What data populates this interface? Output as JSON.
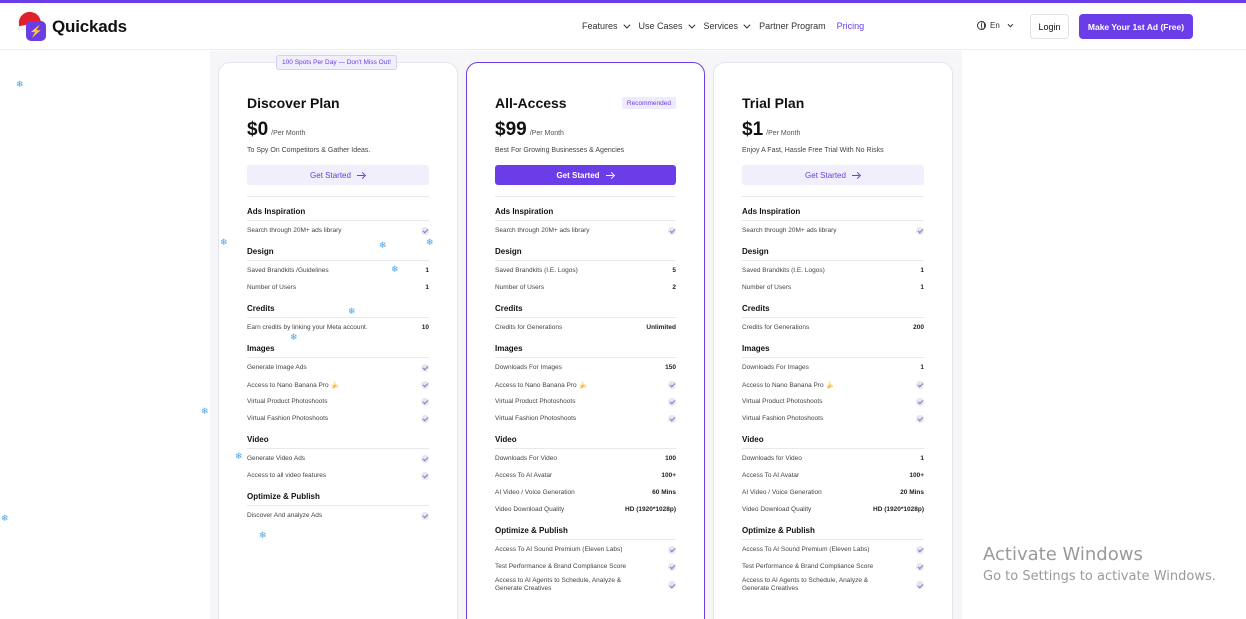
{
  "brand": {
    "name": "Quickads"
  },
  "nav": {
    "items": [
      {
        "label": "Features",
        "dropdown": true
      },
      {
        "label": "Use Cases",
        "dropdown": true
      },
      {
        "label": "Services",
        "dropdown": true
      },
      {
        "label": "Partner Program",
        "dropdown": false
      },
      {
        "label": "Pricing",
        "dropdown": false,
        "active": true
      }
    ],
    "lang": "En",
    "login": "Login",
    "cta": "Make Your 1st Ad (Free)"
  },
  "badges": {
    "spots": "100 Spots Per Day — Don't Miss Out!",
    "recommended": "Recommended"
  },
  "plans": [
    {
      "name": "Discover Plan",
      "price": "$0",
      "per": "/Per Month",
      "desc": "To Spy On Competitors & Gather Ideas.",
      "button": "Get Started",
      "style": "light",
      "sections": [
        {
          "title": "Ads Inspiration",
          "rows": [
            {
              "label": "Search through 20M+ ads library",
              "check": true
            }
          ]
        },
        {
          "title": "Design",
          "rows": [
            {
              "label": "Saved Brandkits /Guidelines",
              "value": "1"
            },
            {
              "label": "Number of Users",
              "value": "1"
            }
          ]
        },
        {
          "title": "Credits",
          "rows": [
            {
              "label": "Earn credits by linking your Meta account.",
              "value": "10"
            }
          ]
        },
        {
          "title": "Images",
          "rows": [
            {
              "label": "Generate Image Ads",
              "check": true
            },
            {
              "label": "Access to Nano Banana Pro 🍌",
              "check": true
            },
            {
              "label": "Virtual Product Photoshoots",
              "check": true
            },
            {
              "label": "Virtual Fashion Photoshoots",
              "check": true
            }
          ]
        },
        {
          "title": "Video",
          "rows": [
            {
              "label": "Generate Video Ads",
              "check": true
            },
            {
              "label": "Access to all video features",
              "check": true
            }
          ]
        },
        {
          "title": "Optimize & Publish",
          "rows": [
            {
              "label": "Discover And analyze Ads",
              "check": true
            }
          ]
        }
      ]
    },
    {
      "name": "All-Access",
      "price": "$99",
      "per": "/Per Month",
      "desc": "Best For Growing Businesses & Agencies",
      "button": "Get Started",
      "style": "solid",
      "recommended": true,
      "sections": [
        {
          "title": "Ads Inspiration",
          "rows": [
            {
              "label": "Search through 20M+ ads library",
              "check": true
            }
          ]
        },
        {
          "title": "Design",
          "rows": [
            {
              "label": "Saved Brandkits (I.E. Logos)",
              "value": "5"
            },
            {
              "label": "Number of Users",
              "value": "2"
            }
          ]
        },
        {
          "title": "Credits",
          "rows": [
            {
              "label": "Credits for Generations",
              "value": "Unlimited"
            }
          ]
        },
        {
          "title": "Images",
          "rows": [
            {
              "label": "Downloads For Images",
              "value": "150"
            },
            {
              "label": "Access to Nano Banana Pro 🍌",
              "check": true
            },
            {
              "label": "Virtual Product Photoshoots",
              "check": true
            },
            {
              "label": "Virtual Fashion Photoshoots",
              "check": true
            }
          ]
        },
        {
          "title": "Video",
          "rows": [
            {
              "label": "Downloads For Video",
              "value": "100"
            },
            {
              "label": "Access To AI Avatar",
              "value": "100+"
            },
            {
              "label": "AI Video / Voice Generation",
              "value": "60 Mins"
            },
            {
              "label": "Video Download Quality",
              "value": "HD (1920*1028p)"
            }
          ]
        },
        {
          "title": "Optimize & Publish",
          "rows": [
            {
              "label": "Access To AI Sound Premium (Eleven Labs)",
              "check": true
            },
            {
              "label": "Test Performance & Brand Compliance Score",
              "check": true
            },
            {
              "label": "Access to AI Agents to Schedule, Analyze & Generate Creatives",
              "check": true
            }
          ]
        }
      ]
    },
    {
      "name": "Trial Plan",
      "price": "$1",
      "per": "/Per Month",
      "desc": "Enjoy A Fast, Hassle Free Trial With No Risks",
      "button": "Get Started",
      "style": "light",
      "sections": [
        {
          "title": "Ads Inspiration",
          "rows": [
            {
              "label": "Search through 20M+ ads library",
              "check": true
            }
          ]
        },
        {
          "title": "Design",
          "rows": [
            {
              "label": "Saved Brandkits (I.E. Logos)",
              "value": "1"
            },
            {
              "label": "Number of Users",
              "value": "1"
            }
          ]
        },
        {
          "title": "Credits",
          "rows": [
            {
              "label": "Credits for Generations",
              "value": "200"
            }
          ]
        },
        {
          "title": "Images",
          "rows": [
            {
              "label": "Downloads For Images",
              "value": "1"
            },
            {
              "label": "Access to Nano Banana Pro 🍌",
              "check": true
            },
            {
              "label": "Virtual Product Photoshoots",
              "check": true
            },
            {
              "label": "Virtual Fashion Photoshoots",
              "check": true
            }
          ]
        },
        {
          "title": "Video",
          "rows": [
            {
              "label": "Downloads for Video",
              "value": "1"
            },
            {
              "label": "Access To AI Avatar",
              "value": "100+"
            },
            {
              "label": "AI Video / Voice Generation",
              "value": "20 Mins"
            },
            {
              "label": "Video Download Quality",
              "value": "HD (1920*1028p)"
            }
          ]
        },
        {
          "title": "Optimize & Publish",
          "rows": [
            {
              "label": "Access To AI Sound Premium (Eleven Labs)",
              "check": true
            },
            {
              "label": "Test Performance & Brand Compliance Score",
              "check": true
            },
            {
              "label": "Access to AI Agents to Schedule, Analyze & Generate Creatives",
              "check": true
            }
          ]
        }
      ]
    }
  ],
  "watermark": {
    "title": "Activate Windows",
    "sub": "Go to Settings to activate Windows."
  },
  "colors": {
    "accent": "#6a3de8",
    "badge_bg": "#f1effb",
    "snow": "#4aa3e6"
  }
}
